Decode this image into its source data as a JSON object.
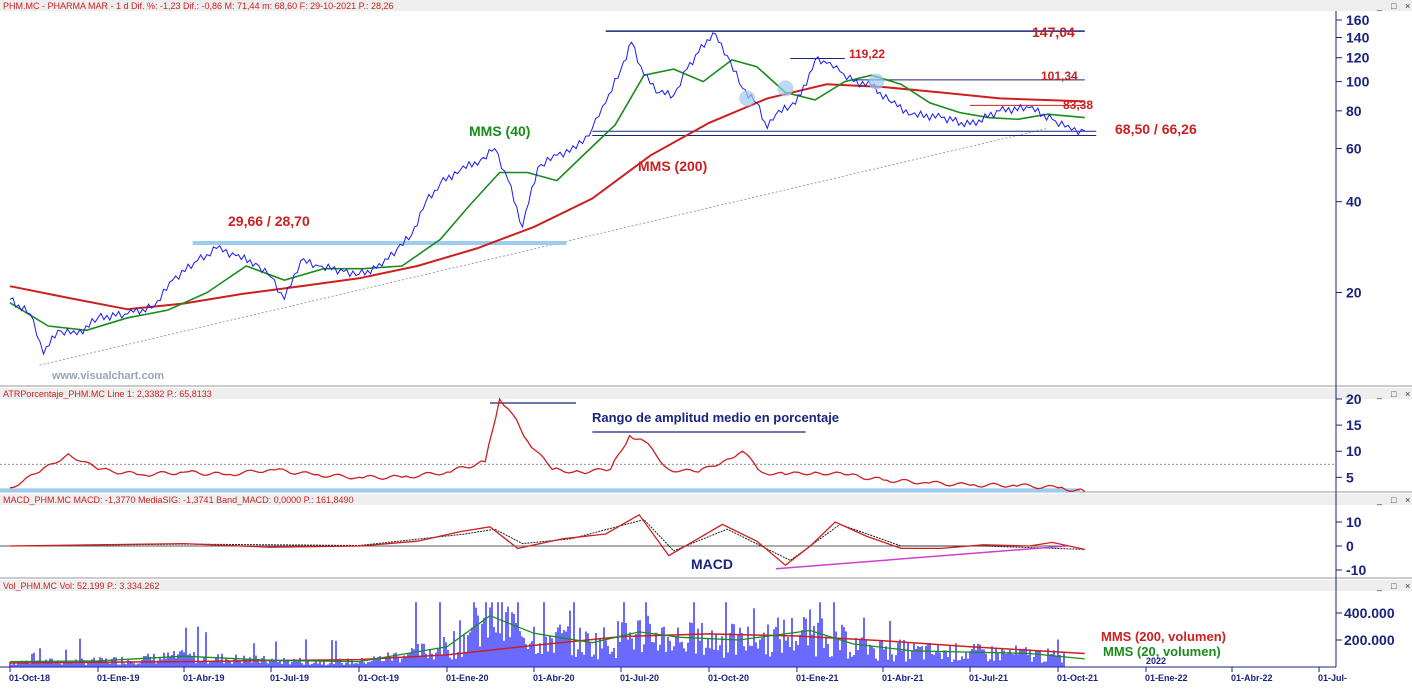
{
  "headers": {
    "price": "PHM.MC - PHARMA MAR -  1 d  Dif. %: -1,23  Dif.: -0,86  M: 71,44  m: 68,60  F: 29-10-2021  P.: 28,26",
    "atr": "ATRPorcentaje_PHM.MC  Line 1: 2,3382  P.: 65,8133",
    "macd": "MACD_PHM.MC  MACD: -1,3770  MediaSIG: -1,3741  Band_MACD: 0,0000  P.: 161,8490",
    "vol": "Vol_PHM.MC  Vol: 52.199  P.: 3.334.262"
  },
  "window_buttons": [
    "_",
    "□",
    "×"
  ],
  "watermark": "www.visualchart.com",
  "colors": {
    "price": "#1a1aff",
    "mms40": "#1a8c1a",
    "mms200": "#cc2020",
    "support": "#9ecbf0",
    "axis_text": "#1a237e",
    "annot_red": "#cc2020",
    "annot_green": "#1a8c1a",
    "macd_trend": "#d040d0"
  },
  "annotations": {
    "mms40": "MMS (40)",
    "mms200": "MMS (200)",
    "support1": "29,66 / 28,70",
    "level_147": "147,04",
    "level_119": "119,22",
    "level_101": "101,34",
    "level_83": "83,38",
    "support2": "68,50 / 66,26",
    "atr_note": "Rango de amplitud medio en porcentaje",
    "macd_note": "MACD",
    "vol_mms200": "MMS (200, volumen)",
    "vol_mms20": "MMS (20, volumen)"
  },
  "chart_data": [
    {
      "type": "line",
      "pane": "price",
      "scale": "log",
      "x": [
        "01-Oct-18",
        "01-Ene-19",
        "01-Abr-19",
        "01-Jul-19",
        "01-Oct-19",
        "01-Ene-20",
        "01-Abr-20",
        "01-Jul-20",
        "01-Oct-20",
        "01-Ene-21",
        "01-Abr-21",
        "01-Jul-21",
        "01-Oct-21",
        "01-Ene-22",
        "01-Abr-22",
        "01-Jul-"
      ],
      "ylim": [
        10,
        165
      ],
      "yticks": [
        20,
        40,
        60,
        80,
        100,
        120,
        140,
        160
      ],
      "series": [
        {
          "name": "PHM.MC",
          "x": [
            "2018-10-01",
            "2018-10-22",
            "2018-11-05",
            "2018-11-20",
            "2018-12-10",
            "2019-01-01",
            "2019-02-01",
            "2019-03-01",
            "2019-03-20",
            "2019-04-15",
            "2019-05-05",
            "2019-05-25",
            "2019-06-15",
            "2019-07-01",
            "2019-07-15",
            "2019-08-01",
            "2019-08-20",
            "2019-09-15",
            "2019-10-01",
            "2019-10-25",
            "2019-11-10",
            "2019-11-25",
            "2019-12-10",
            "2019-12-25",
            "2020-01-15",
            "2020-02-05",
            "2020-02-20",
            "2020-03-05",
            "2020-03-20",
            "2020-04-05",
            "2020-04-25",
            "2020-05-15",
            "2020-06-01",
            "2020-06-15",
            "2020-07-01",
            "2020-07-12",
            "2020-07-25",
            "2020-08-10",
            "2020-08-25",
            "2020-09-08",
            "2020-09-20",
            "2020-10-05",
            "2020-10-20",
            "2020-11-05",
            "2020-11-20",
            "2020-12-01",
            "2020-12-10",
            "2020-12-25",
            "2021-01-05",
            "2021-01-20",
            "2021-02-01",
            "2021-02-15",
            "2021-03-01",
            "2021-03-20",
            "2021-04-10",
            "2021-05-01",
            "2021-06-01",
            "2021-07-01",
            "2021-08-01",
            "2021-09-01",
            "2021-09-25",
            "2021-10-15",
            "2021-10-29"
          ],
          "y": [
            19.0,
            17.0,
            12.5,
            15.0,
            14.5,
            16.5,
            17.0,
            18.0,
            22.0,
            25.5,
            28.0,
            26.5,
            25.0,
            22.5,
            19.0,
            25.5,
            24.5,
            23.5,
            23.0,
            24.5,
            28.0,
            31.0,
            40.0,
            46.0,
            51.0,
            55.0,
            60.0,
            47.0,
            33.0,
            52.0,
            57.0,
            60.0,
            70.0,
            85.0,
            110.0,
            135.0,
            105.0,
            92.0,
            90.0,
            110.0,
            125.0,
            145.0,
            122.0,
            95.0,
            85.0,
            70.0,
            78.0,
            83.0,
            90.0,
            118.0,
            115.0,
            108.0,
            100.0,
            97.0,
            85.0,
            78.0,
            76.0,
            72.0,
            80.0,
            82.0,
            75.0,
            69.0,
            68.6
          ]
        },
        {
          "name": "MMS (40)",
          "x": [
            "2018-10-01",
            "2018-11-10",
            "2018-12-20",
            "2019-02-01",
            "2019-03-15",
            "2019-04-25",
            "2019-06-05",
            "2019-07-15",
            "2019-08-25",
            "2019-10-05",
            "2019-11-15",
            "2019-12-25",
            "2020-01-25",
            "2020-02-25",
            "2020-03-25",
            "2020-04-25",
            "2020-05-25",
            "2020-06-25",
            "2020-07-25",
            "2020-08-25",
            "2020-09-25",
            "2020-10-25",
            "2020-11-20",
            "2020-12-20",
            "2021-01-20",
            "2021-02-20",
            "2021-03-20",
            "2021-04-20",
            "2021-05-20",
            "2021-06-20",
            "2021-07-20",
            "2021-08-20",
            "2021-09-20",
            "2021-10-29"
          ],
          "y": [
            18.5,
            15.5,
            15.0,
            16.5,
            17.5,
            20.0,
            24.5,
            22.0,
            24.0,
            24.0,
            24.5,
            30.0,
            39.0,
            50.0,
            50.0,
            47.0,
            58.0,
            72.0,
            105.0,
            110.0,
            100.0,
            118.0,
            112.0,
            92.0,
            87.0,
            100.0,
            105.0,
            98.0,
            85.0,
            79.0,
            76.0,
            75.0,
            78.0,
            76.0
          ]
        },
        {
          "name": "MMS (200)",
          "x": [
            "2018-10-01",
            "2018-12-01",
            "2019-02-01",
            "2019-04-01",
            "2019-06-01",
            "2019-08-01",
            "2019-10-01",
            "2019-12-01",
            "2020-02-01",
            "2020-04-01",
            "2020-06-01",
            "2020-08-01",
            "2020-10-01",
            "2020-12-01",
            "2021-02-01",
            "2021-04-01",
            "2021-06-01",
            "2021-08-01",
            "2021-10-29"
          ],
          "y": [
            21.0,
            19.2,
            17.6,
            18.4,
            19.8,
            21.0,
            22.3,
            24.5,
            28.0,
            33.0,
            41.0,
            57.0,
            73.0,
            88.0,
            98.0,
            96.0,
            92.0,
            88.0,
            86.0
          ]
        }
      ],
      "levels": [
        {
          "value": 147.04,
          "from": "2020-06-15",
          "to": "2021-10-29",
          "label": "147,04"
        },
        {
          "value": 119.22,
          "from": "2020-12-25",
          "to": "2021-02-20",
          "label": "119,22"
        },
        {
          "value": 101.34,
          "from": "2021-03-01",
          "to": "2021-10-29",
          "label": "101,34"
        },
        {
          "value": 83.38,
          "from": "2021-07-01",
          "to": "2021-10-29",
          "label": "83,38"
        },
        {
          "value": 68.5,
          "from": "2020-06-01",
          "to": "2021-11-10",
          "label": "68,50 / 66,26"
        },
        {
          "value": 66.26,
          "from": "2020-06-01",
          "to": "2021-11-10"
        },
        {
          "value": 29.2,
          "from": "2019-04-10",
          "to": "2020-05-05",
          "label": "29,66 / 28,70"
        }
      ]
    },
    {
      "type": "line",
      "pane": "atr",
      "ylim": [
        2,
        20
      ],
      "yticks": [
        5,
        10,
        15,
        20
      ],
      "reference_line": 7.5,
      "series": [
        {
          "name": "ATRPorcentaje_PHM.MC",
          "x": [
            "2018-10-01",
            "2018-11-01",
            "2018-12-01",
            "2019-01-01",
            "2019-02-15",
            "2019-04-01",
            "2019-05-15",
            "2019-07-01",
            "2019-08-15",
            "2019-10-01",
            "2019-11-15",
            "2020-01-01",
            "2020-02-10",
            "2020-02-25",
            "2020-03-10",
            "2020-03-25",
            "2020-04-20",
            "2020-05-20",
            "2020-06-20",
            "2020-07-10",
            "2020-07-25",
            "2020-08-20",
            "2020-09-20",
            "2020-10-20",
            "2020-11-05",
            "2020-11-25",
            "2020-12-20",
            "2021-01-20",
            "2021-02-20",
            "2021-04-01",
            "2021-05-15",
            "2021-07-01",
            "2021-08-15",
            "2021-10-01",
            "2021-10-29"
          ],
          "y": [
            3.0,
            6.0,
            9.5,
            6.5,
            5.5,
            6.0,
            5.5,
            6.5,
            5.5,
            5.0,
            5.0,
            6.0,
            8.0,
            20.0,
            17.0,
            12.0,
            6.5,
            6.0,
            6.5,
            13.0,
            12.0,
            6.5,
            6.0,
            8.5,
            10.0,
            6.0,
            5.5,
            6.0,
            5.5,
            4.5,
            4.0,
            3.5,
            3.5,
            3.0,
            2.3
          ]
        }
      ],
      "annotation_levels": [
        2.5
      ]
    },
    {
      "type": "line",
      "pane": "macd",
      "ylim": [
        -13,
        16
      ],
      "yticks": [
        -10,
        0,
        10
      ],
      "series": [
        {
          "name": "MACD",
          "x": [
            "2018-10-01",
            "2019-01-01",
            "2019-04-01",
            "2019-07-01",
            "2019-10-01",
            "2019-12-01",
            "2020-01-15",
            "2020-02-15",
            "2020-03-15",
            "2020-05-01",
            "2020-06-15",
            "2020-07-20",
            "2020-08-20",
            "2020-09-15",
            "2020-10-15",
            "2020-11-20",
            "2020-12-20",
            "2021-01-15",
            "2021-02-10",
            "2021-03-15",
            "2021-04-20",
            "2021-06-01",
            "2021-07-15",
            "2021-09-01",
            "2021-09-25",
            "2021-10-29"
          ],
          "y": [
            0,
            0.5,
            1,
            -0.5,
            0,
            2,
            6,
            8,
            -1,
            3,
            5,
            13,
            -4,
            2,
            9,
            2,
            -8,
            0,
            10,
            4,
            -1,
            -1,
            0.5,
            0,
            1.5,
            -1.4
          ]
        },
        {
          "name": "MediaSIG",
          "x": [
            "2018-10-01",
            "2019-04-01",
            "2019-10-01",
            "2020-01-20",
            "2020-02-20",
            "2020-03-20",
            "2020-05-10",
            "2020-07-25",
            "2020-08-25",
            "2020-10-20",
            "2020-12-25",
            "2021-02-15",
            "2021-04-20",
            "2021-07-15",
            "2021-10-29"
          ],
          "y": [
            0,
            0.8,
            0.2,
            5,
            7,
            1,
            3,
            11,
            -2,
            7,
            -6,
            9,
            0,
            0,
            -1.4
          ]
        }
      ],
      "trendline": {
        "x": [
          "2020-12-10",
          "2021-10-10"
        ],
        "y": [
          -9.5,
          0
        ]
      }
    },
    {
      "type": "bar",
      "pane": "volume",
      "ylim": [
        0,
        500000
      ],
      "yticks": [
        200000,
        400000
      ],
      "last_volume": 52199,
      "series": [
        {
          "name": "MMS (200, volumen)",
          "x": [
            "2018-10-01",
            "2019-04-01",
            "2019-10-01",
            "2020-01-01",
            "2020-04-01",
            "2020-07-01",
            "2020-10-01",
            "2021-01-01",
            "2021-04-01",
            "2021-07-01",
            "2021-10-29"
          ],
          "y": [
            30000,
            40000,
            55000,
            90000,
            160000,
            225000,
            245000,
            230000,
            195000,
            150000,
            100000
          ]
        },
        {
          "name": "MMS (20, volumen)",
          "x": [
            "2018-10-01",
            "2019-01-01",
            "2019-04-01",
            "2019-07-01",
            "2019-10-01",
            "2020-01-01",
            "2020-02-15",
            "2020-04-01",
            "2020-06-01",
            "2020-07-20",
            "2020-09-01",
            "2020-11-01",
            "2021-01-15",
            "2021-03-01",
            "2021-05-01",
            "2021-07-01",
            "2021-09-01",
            "2021-10-29"
          ],
          "y": [
            40000,
            45000,
            80000,
            50000,
            40000,
            150000,
            380000,
            250000,
            180000,
            260000,
            220000,
            200000,
            270000,
            170000,
            120000,
            110000,
            100000,
            60000
          ]
        }
      ]
    }
  ]
}
